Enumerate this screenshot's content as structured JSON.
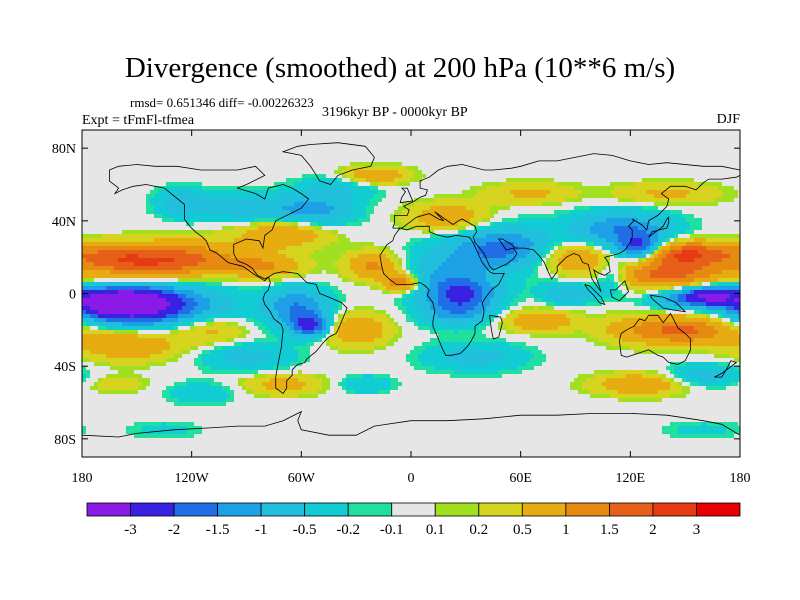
{
  "chart_data": {
    "type": "heatmap",
    "title": "Divergence (smoothed) at 200 hPa (10**6 m/s)",
    "stats_text": "rmsd= 0.651346 diff= -0.00226323",
    "experiment_text": "Expt = tFmFl-tfmea",
    "period_text": "3196kyr BP - 0000kyr BP",
    "season_text": "DJF",
    "x_ticks": [
      {
        "lon": -180,
        "label": "180"
      },
      {
        "lon": -120,
        "label": "120W"
      },
      {
        "lon": -60,
        "label": "60W"
      },
      {
        "lon": 0,
        "label": "0"
      },
      {
        "lon": 60,
        "label": "60E"
      },
      {
        "lon": 120,
        "label": "120E"
      },
      {
        "lon": 180,
        "label": "180"
      }
    ],
    "y_ticks": [
      {
        "lat": 80,
        "label": "80N"
      },
      {
        "lat": 40,
        "label": "40N"
      },
      {
        "lat": 0,
        "label": "0"
      },
      {
        "lat": -40,
        "label": "40S"
      },
      {
        "lat": -80,
        "label": "80S"
      }
    ],
    "xlim": [
      -180,
      180
    ],
    "ylim": [
      -90,
      90
    ],
    "colorbar": {
      "levels": [
        "-3",
        "-2",
        "-1.5",
        "-1",
        "-0.5",
        "-0.2",
        "-0.1",
        "0.1",
        "0.2",
        "0.5",
        "1",
        "1.5",
        "2",
        "3"
      ],
      "colors": [
        "#8a1ae6",
        "#3a20e0",
        "#1f6ee6",
        "#1ea0e6",
        "#20c0dd",
        "#12ccd4",
        "#1fe0a0",
        "#e6e6e6",
        "#a0e020",
        "#d6d41e",
        "#e6ac12",
        "#e68a12",
        "#e6601a",
        "#e63a12",
        "#e60000"
      ]
    },
    "blobs": [
      {
        "lon": -160,
        "lat": -5,
        "rlon": 22,
        "rlat": 7,
        "v": -3.2
      },
      {
        "lon": -150,
        "lat": -7,
        "rlon": 30,
        "rlat": 10,
        "v": -2.0
      },
      {
        "lon": -135,
        "lat": -6,
        "rlon": 42,
        "rlat": 12,
        "v": -1.0
      },
      {
        "lon": -150,
        "lat": 17,
        "rlon": 35,
        "rlat": 9,
        "v": 1.6
      },
      {
        "lon": -120,
        "lat": 20,
        "rlon": 28,
        "rlat": 10,
        "v": 1.0
      },
      {
        "lon": -165,
        "lat": 22,
        "rlon": 20,
        "rlat": 7,
        "v": 0.6
      },
      {
        "lon": -155,
        "lat": -28,
        "rlon": 28,
        "rlat": 9,
        "v": 1.0
      },
      {
        "lon": -110,
        "lat": -20,
        "rlon": 20,
        "rlat": 8,
        "v": 0.7
      },
      {
        "lon": -115,
        "lat": -55,
        "rlon": 18,
        "rlat": 6,
        "v": -0.5
      },
      {
        "lon": -160,
        "lat": -50,
        "rlon": 16,
        "rlat": 5,
        "v": 0.4
      },
      {
        "lon": -125,
        "lat": 50,
        "rlon": 14,
        "rlat": 8,
        "v": -0.8
      },
      {
        "lon": -85,
        "lat": 47,
        "rlon": 30,
        "rlat": 8,
        "v": -0.9
      },
      {
        "lon": -70,
        "lat": 33,
        "rlon": 25,
        "rlat": 8,
        "v": 1.0
      },
      {
        "lon": -50,
        "lat": 45,
        "rlon": 20,
        "rlat": 8,
        "v": -1.0
      },
      {
        "lon": -40,
        "lat": 58,
        "rlon": 22,
        "rlat": 7,
        "v": -0.6
      },
      {
        "lon": -80,
        "lat": 15,
        "rlon": 22,
        "rlat": 7,
        "v": 1.0
      },
      {
        "lon": -62,
        "lat": -8,
        "rlon": 17,
        "rlat": 11,
        "v": -1.5
      },
      {
        "lon": -55,
        "lat": -18,
        "rlon": 10,
        "rlat": 6,
        "v": -2.0
      },
      {
        "lon": -90,
        "lat": -35,
        "rlon": 25,
        "rlat": 8,
        "v": -0.7
      },
      {
        "lon": -70,
        "lat": -50,
        "rlon": 22,
        "rlat": 6,
        "v": 0.7
      },
      {
        "lon": -30,
        "lat": -20,
        "rlon": 18,
        "rlat": 9,
        "v": 1.0
      },
      {
        "lon": -25,
        "lat": -50,
        "rlon": 15,
        "rlat": 5,
        "v": -0.5
      },
      {
        "lon": -20,
        "lat": 15,
        "rlon": 15,
        "rlat": 8,
        "v": 1.2
      },
      {
        "lon": -5,
        "lat": 6,
        "rlon": 10,
        "rlat": 5,
        "v": 1.6
      },
      {
        "lon": -20,
        "lat": 65,
        "rlon": 18,
        "rlat": 5,
        "v": 1.0
      },
      {
        "lon": 20,
        "lat": 10,
        "rlon": 28,
        "rlat": 12,
        "v": -1.0
      },
      {
        "lon": 28,
        "lat": 0,
        "rlon": 18,
        "rlat": 8,
        "v": -1.6
      },
      {
        "lon": 42,
        "lat": 25,
        "rlon": 30,
        "rlat": 10,
        "v": -0.9
      },
      {
        "lon": 55,
        "lat": 25,
        "rlon": 22,
        "rlat": 12,
        "v": -0.9
      },
      {
        "lon": 20,
        "lat": 42,
        "rlon": 22,
        "rlat": 8,
        "v": 0.9
      },
      {
        "lon": 25,
        "lat": -10,
        "rlon": 20,
        "rlat": 8,
        "v": -1.2
      },
      {
        "lon": 35,
        "lat": -35,
        "rlon": 28,
        "rlat": 8,
        "v": -0.7
      },
      {
        "lon": 70,
        "lat": -15,
        "rlon": 20,
        "rlat": 6,
        "v": 1.0
      },
      {
        "lon": 85,
        "lat": 0,
        "rlon": 15,
        "rlat": 6,
        "v": -1.0
      },
      {
        "lon": 70,
        "lat": -2,
        "rlon": 8,
        "rlat": 5,
        "v": 0.1
      },
      {
        "lon": 90,
        "lat": 20,
        "rlon": 22,
        "rlat": 9,
        "v": 1.0
      },
      {
        "lon": 65,
        "lat": 55,
        "rlon": 25,
        "rlat": 6,
        "v": 0.6
      },
      {
        "lon": 115,
        "lat": 35,
        "rlon": 28,
        "rlat": 10,
        "v": -1.5
      },
      {
        "lon": 125,
        "lat": 25,
        "rlon": 12,
        "rlat": 7,
        "v": -2.0
      },
      {
        "lon": 110,
        "lat": 10,
        "rlon": 10,
        "rlat": 10,
        "v": -0.8
      },
      {
        "lon": 140,
        "lat": 10,
        "rlon": 30,
        "rlat": 8,
        "v": 1.6
      },
      {
        "lon": 150,
        "lat": 22,
        "rlon": 25,
        "rlat": 7,
        "v": 2.0
      },
      {
        "lon": 165,
        "lat": -1,
        "rlon": 15,
        "rlat": 5,
        "v": -2.5
      },
      {
        "lon": 150,
        "lat": -3,
        "rlon": 20,
        "rlat": 6,
        "v": -1.2
      },
      {
        "lon": 150,
        "lat": -20,
        "rlon": 25,
        "rlat": 8,
        "v": 1.6
      },
      {
        "lon": 120,
        "lat": -20,
        "rlon": 20,
        "rlat": 8,
        "v": 0.6
      },
      {
        "lon": 125,
        "lat": -50,
        "rlon": 25,
        "rlat": 6,
        "v": 1.0
      },
      {
        "lon": 160,
        "lat": -45,
        "rlon": 20,
        "rlat": 6,
        "v": -0.8
      },
      {
        "lon": 140,
        "lat": 55,
        "rlon": 30,
        "rlat": 6,
        "v": 0.6
      },
      {
        "lon": -135,
        "lat": -75,
        "rlon": 20,
        "rlat": 5,
        "v": -0.3
      },
      {
        "lon": 160,
        "lat": -75,
        "rlon": 22,
        "rlat": 5,
        "v": -0.3
      }
    ]
  }
}
